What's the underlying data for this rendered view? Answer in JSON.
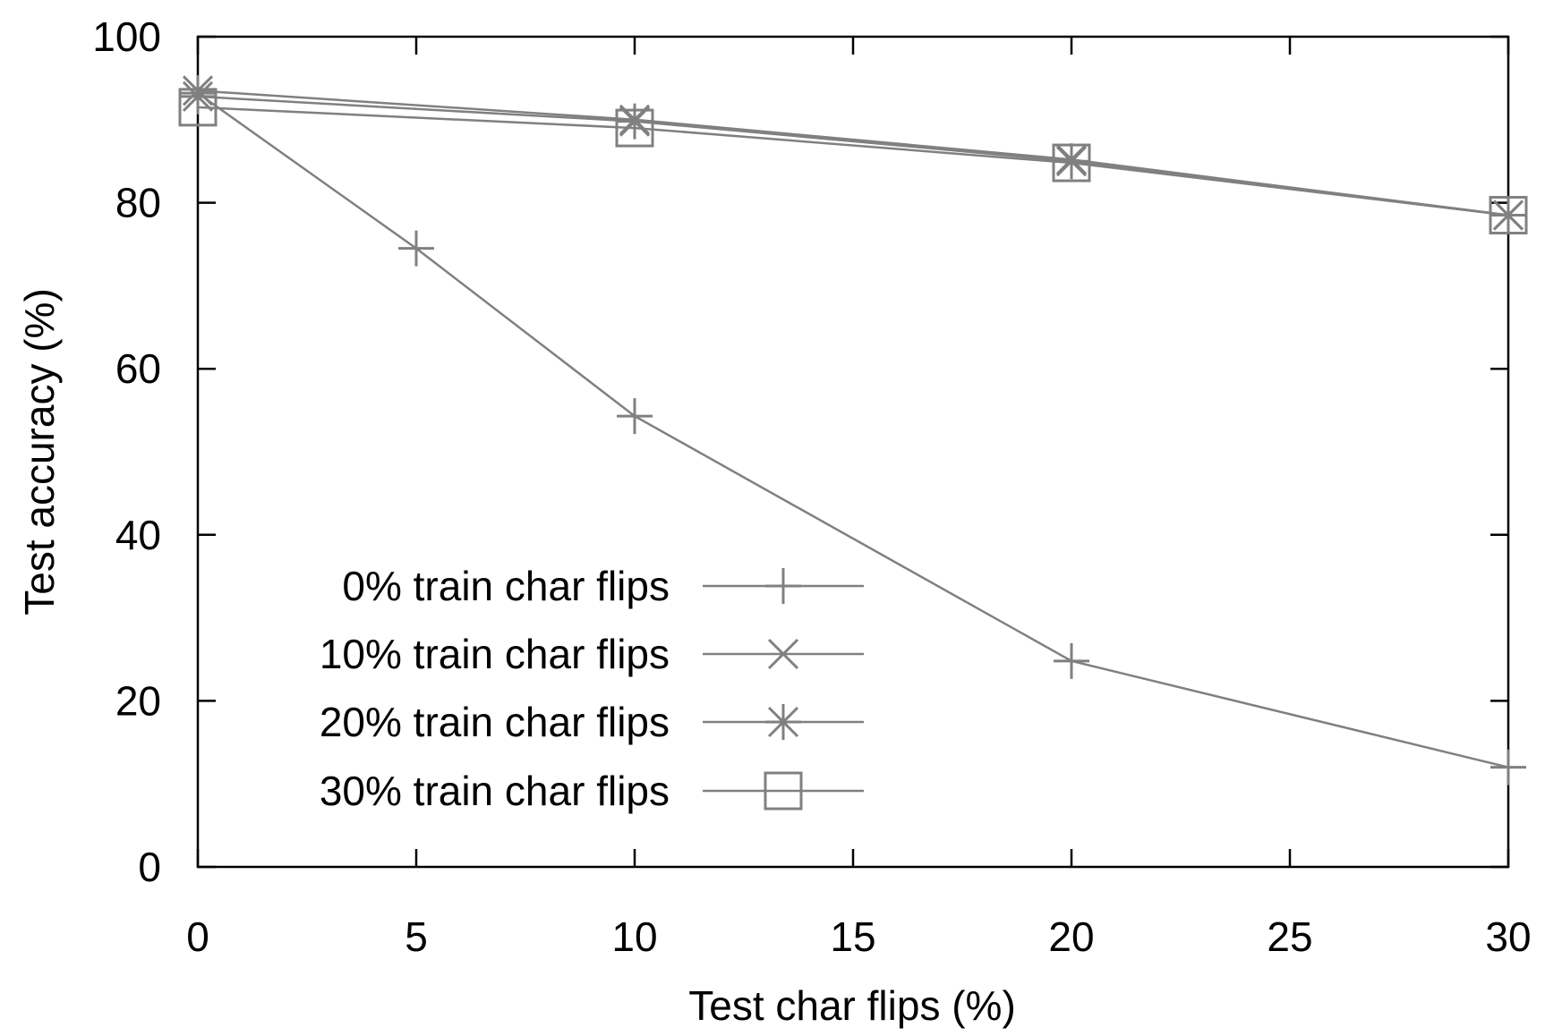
{
  "chart_data": {
    "type": "line",
    "title": "",
    "xlabel": "Test char flips (%)",
    "ylabel": "Test accuracy (%)",
    "xlim": [
      0,
      30
    ],
    "ylim": [
      0,
      100
    ],
    "xticks": [
      0,
      5,
      10,
      15,
      20,
      25,
      30
    ],
    "yticks": [
      0,
      20,
      40,
      60,
      80,
      100
    ],
    "grid": false,
    "legend_position": "bottom-left",
    "line_color": "#808080",
    "series": [
      {
        "name": "0% train char flips",
        "marker": "plus",
        "x": [
          0,
          5,
          10,
          20,
          30
        ],
        "y": [
          93.2,
          74.5,
          54.3,
          24.8,
          12.0
        ]
      },
      {
        "name": "10% train char flips",
        "marker": "cross",
        "x": [
          0,
          10,
          20,
          30
        ],
        "y": [
          93.5,
          90.0,
          85.2,
          78.5
        ]
      },
      {
        "name": "20% train char flips",
        "marker": "star",
        "x": [
          0,
          10,
          20,
          30
        ],
        "y": [
          92.8,
          89.8,
          85.0,
          78.5
        ]
      },
      {
        "name": "30% train char flips",
        "marker": "square",
        "x": [
          0,
          10,
          20,
          30
        ],
        "y": [
          91.5,
          89.0,
          84.8,
          78.5
        ]
      }
    ]
  }
}
